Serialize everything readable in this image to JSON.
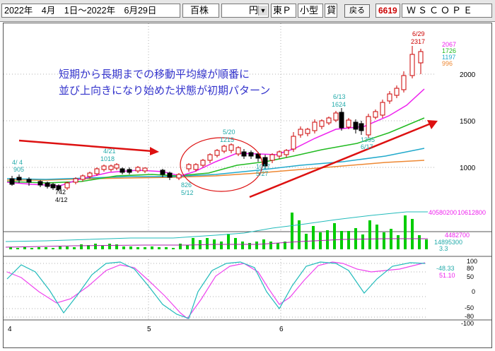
{
  "toolbar": {
    "date_from": "2022年　4月　1日～2022年　6月29日",
    "unit_label": "百株",
    "currency_value": "円",
    "market_1": "東Ｐ",
    "market_2": "小型",
    "market_3": "貸",
    "back_button": "戻る",
    "code": "6619",
    "name": "ＷＳＣＯＰＥ"
  },
  "annotation": {
    "line1": "短期から長期までの移動平均線が順番に",
    "line2": "並び上向きになり始めた状態が初期パターン"
  },
  "price_labels": {
    "p1": {
      "date": "4/ 4",
      "value": "905"
    },
    "p2": {
      "date": "4/21",
      "value": "1018"
    },
    "p3": {
      "date": "5/20",
      "value": "1215"
    },
    "p4": {
      "date": "6/13",
      "value": "1624"
    },
    "p5": {
      "date": "6/29",
      "value": "2317"
    },
    "p6": {
      "value": "742",
      "date": "4/12"
    },
    "p7": {
      "value": "826",
      "date": "5/12"
    },
    "p8": {
      "value": "1017",
      "date": "5/27"
    },
    "p9": {
      "value": "1395",
      "date": "6/17"
    }
  },
  "ma_values": {
    "v1": "2067",
    "v2": "1726",
    "v3": "1197",
    "v4": "996"
  },
  "volume_labels": {
    "v1": "40580200",
    "v2": "10612800",
    "v3": "4482700",
    "v4": "14895300",
    "v5": "3.3"
  },
  "osc_labels": {
    "v1": "-48.33",
    "v2": "51.10"
  },
  "colors": {
    "candle_up": "#cc0000",
    "candle_down": "#000000",
    "ma_short": "#ee22ee",
    "ma_mid": "#22bb22",
    "ma_long": "#22aacc",
    "ma_longest": "#ee8833",
    "arrow": "#dd1111",
    "volume": "#00cc00",
    "osc_1": "#ee44ee",
    "osc_2": "#22bbbb"
  },
  "chart_data": [
    {
      "type": "candlestick",
      "x_labels": [
        "4",
        "5",
        "6"
      ],
      "y_ticks": [
        1000,
        1500,
        2000
      ],
      "ylim": [
        700,
        2400
      ],
      "moving_averages": [
        "short",
        "medium",
        "long",
        "longest"
      ]
    },
    {
      "type": "bar",
      "title": "",
      "series": [
        {
          "values": []
        }
      ]
    },
    {
      "type": "line",
      "y_ticks": [
        100,
        80,
        50,
        0,
        -50,
        -80,
        -100
      ],
      "ylim": [
        -100,
        100
      ]
    }
  ]
}
